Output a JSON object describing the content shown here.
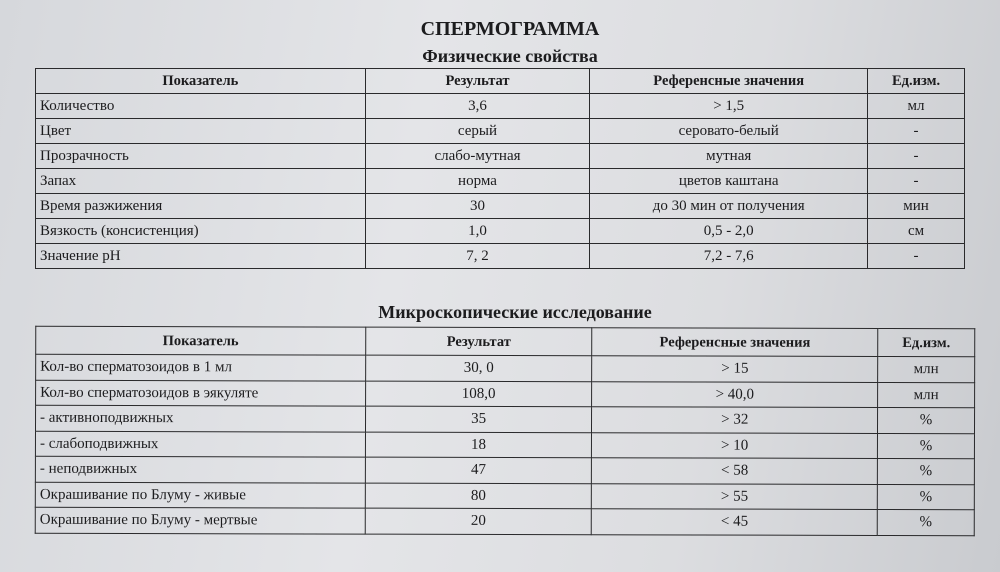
{
  "document": {
    "title": "СПЕРМОГРАММА",
    "physical": {
      "heading": "Физические свойства",
      "columns": [
        "Показатель",
        "Результат",
        "Референсные значения",
        "Ед.изм."
      ],
      "rows": [
        [
          "Количество",
          "3,6",
          "> 1,5",
          "мл"
        ],
        [
          "Цвет",
          "серый",
          "серовато-белый",
          "-"
        ],
        [
          "Прозрачность",
          "слабо-мутная",
          "мутная",
          "-"
        ],
        [
          "Запах",
          "норма",
          "цветов каштана",
          "-"
        ],
        [
          "Время разжижения",
          "30",
          "до 30 мин от получения",
          "мин"
        ],
        [
          "Вязкость (консистенция)",
          "1,0",
          "0,5 - 2,0",
          "см"
        ],
        [
          "Значение pH",
          "7, 2",
          "7,2 - 7,6",
          "-"
        ]
      ]
    },
    "microscopic": {
      "heading": "Микроскопические исследование",
      "columns": [
        "Показатель",
        "Результат",
        "Референсные значения",
        "Ед.изм."
      ],
      "rows": [
        [
          "Кол-во сперматозоидов в 1 мл",
          "30, 0",
          "> 15",
          "млн"
        ],
        [
          "Кол-во сперматозоидов в эякуляте",
          "108,0",
          "> 40,0",
          "млн"
        ],
        [
          "- активноподвижных",
          "35",
          "> 32",
          "%"
        ],
        [
          "- слабоподвижных",
          "18",
          "> 10",
          "%"
        ],
        [
          "- неподвижных",
          "47",
          "< 58",
          "%"
        ],
        [
          "Окрашивание по Блуму - живые",
          "80",
          "> 55",
          "%"
        ],
        [
          "Окрашивание по Блуму - мертвые",
          "20",
          "< 45",
          "%"
        ]
      ]
    }
  }
}
